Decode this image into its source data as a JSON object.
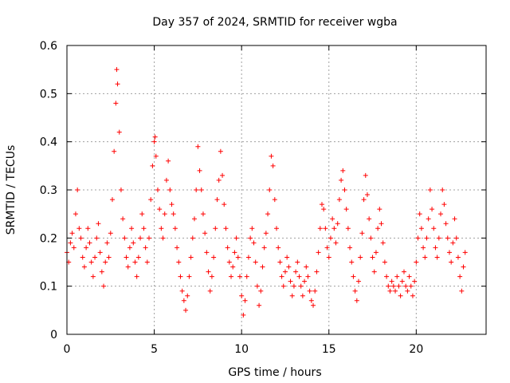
{
  "chart_data": {
    "type": "scatter",
    "title": "Day 357 of 2024, SRMTID for receiver wgba",
    "xlabel": "GPS time / hours",
    "ylabel": "SRMTID / TECUs",
    "xlim": [
      0,
      24
    ],
    "ylim": [
      0,
      0.6
    ],
    "x_ticks": [
      0,
      5,
      10,
      15,
      20
    ],
    "x_tick_labels": [
      "0",
      "5",
      "10",
      "15",
      "20"
    ],
    "y_ticks": [
      0,
      0.1,
      0.2,
      0.3,
      0.4,
      0.5,
      0.6
    ],
    "y_tick_labels": [
      "0",
      "0.1",
      "0.2",
      "0.3",
      "0.4",
      "0.5",
      "0.6"
    ],
    "grid": true,
    "marker": "+",
    "color": "#ff0000",
    "series": [
      {
        "name": "SRMTID",
        "points": [
          [
            0.0,
            0.17
          ],
          [
            0.1,
            0.15
          ],
          [
            0.2,
            0.19
          ],
          [
            0.3,
            0.21
          ],
          [
            0.4,
            0.18
          ],
          [
            0.5,
            0.25
          ],
          [
            0.6,
            0.3
          ],
          [
            0.7,
            0.22
          ],
          [
            0.8,
            0.2
          ],
          [
            0.9,
            0.16
          ],
          [
            1.0,
            0.14
          ],
          [
            1.1,
            0.18
          ],
          [
            1.2,
            0.22
          ],
          [
            1.3,
            0.19
          ],
          [
            1.4,
            0.15
          ],
          [
            1.5,
            0.12
          ],
          [
            1.6,
            0.16
          ],
          [
            1.7,
            0.2
          ],
          [
            1.8,
            0.23
          ],
          [
            1.9,
            0.17
          ],
          [
            2.0,
            0.13
          ],
          [
            2.1,
            0.1
          ],
          [
            2.2,
            0.15
          ],
          [
            2.3,
            0.19
          ],
          [
            2.4,
            0.16
          ],
          [
            2.5,
            0.21
          ],
          [
            2.6,
            0.28
          ],
          [
            2.7,
            0.38
          ],
          [
            2.8,
            0.48
          ],
          [
            2.85,
            0.55
          ],
          [
            2.9,
            0.52
          ],
          [
            3.0,
            0.42
          ],
          [
            3.1,
            0.3
          ],
          [
            3.2,
            0.24
          ],
          [
            3.3,
            0.2
          ],
          [
            3.4,
            0.16
          ],
          [
            3.5,
            0.14
          ],
          [
            3.6,
            0.18
          ],
          [
            3.7,
            0.22
          ],
          [
            3.8,
            0.19
          ],
          [
            3.9,
            0.15
          ],
          [
            4.0,
            0.12
          ],
          [
            4.1,
            0.16
          ],
          [
            4.2,
            0.2
          ],
          [
            4.3,
            0.25
          ],
          [
            4.4,
            0.22
          ],
          [
            4.5,
            0.18
          ],
          [
            4.6,
            0.15
          ],
          [
            4.7,
            0.2
          ],
          [
            4.8,
            0.28
          ],
          [
            4.9,
            0.35
          ],
          [
            5.0,
            0.4
          ],
          [
            5.05,
            0.41
          ],
          [
            5.1,
            0.37
          ],
          [
            5.2,
            0.3
          ],
          [
            5.3,
            0.26
          ],
          [
            5.4,
            0.22
          ],
          [
            5.5,
            0.2
          ],
          [
            5.6,
            0.25
          ],
          [
            5.7,
            0.32
          ],
          [
            5.8,
            0.36
          ],
          [
            5.9,
            0.3
          ],
          [
            6.0,
            0.27
          ],
          [
            6.1,
            0.25
          ],
          [
            6.2,
            0.22
          ],
          [
            6.3,
            0.18
          ],
          [
            6.4,
            0.15
          ],
          [
            6.5,
            0.12
          ],
          [
            6.6,
            0.09
          ],
          [
            6.7,
            0.07
          ],
          [
            6.8,
            0.05
          ],
          [
            6.9,
            0.08
          ],
          [
            7.0,
            0.12
          ],
          [
            7.1,
            0.16
          ],
          [
            7.2,
            0.2
          ],
          [
            7.3,
            0.24
          ],
          [
            7.4,
            0.3
          ],
          [
            7.5,
            0.39
          ],
          [
            7.6,
            0.34
          ],
          [
            7.7,
            0.3
          ],
          [
            7.8,
            0.25
          ],
          [
            7.9,
            0.21
          ],
          [
            8.0,
            0.17
          ],
          [
            8.1,
            0.13
          ],
          [
            8.2,
            0.09
          ],
          [
            8.3,
            0.12
          ],
          [
            8.4,
            0.16
          ],
          [
            8.5,
            0.22
          ],
          [
            8.6,
            0.28
          ],
          [
            8.7,
            0.32
          ],
          [
            8.8,
            0.38
          ],
          [
            8.9,
            0.33
          ],
          [
            9.0,
            0.27
          ],
          [
            9.1,
            0.22
          ],
          [
            9.2,
            0.18
          ],
          [
            9.3,
            0.15
          ],
          [
            9.4,
            0.12
          ],
          [
            9.5,
            0.14
          ],
          [
            9.6,
            0.17
          ],
          [
            9.7,
            0.2
          ],
          [
            9.8,
            0.16
          ],
          [
            9.9,
            0.12
          ],
          [
            10.0,
            0.08
          ],
          [
            10.1,
            0.04
          ],
          [
            10.2,
            0.07
          ],
          [
            10.3,
            0.12
          ],
          [
            10.4,
            0.16
          ],
          [
            10.5,
            0.2
          ],
          [
            10.6,
            0.22
          ],
          [
            10.7,
            0.19
          ],
          [
            10.8,
            0.15
          ],
          [
            10.9,
            0.1
          ],
          [
            11.0,
            0.06
          ],
          [
            11.1,
            0.09
          ],
          [
            11.2,
            0.14
          ],
          [
            11.3,
            0.18
          ],
          [
            11.4,
            0.21
          ],
          [
            11.5,
            0.25
          ],
          [
            11.6,
            0.3
          ],
          [
            11.7,
            0.37
          ],
          [
            11.8,
            0.35
          ],
          [
            11.9,
            0.28
          ],
          [
            12.0,
            0.22
          ],
          [
            12.1,
            0.18
          ],
          [
            12.2,
            0.15
          ],
          [
            12.3,
            0.12
          ],
          [
            12.4,
            0.1
          ],
          [
            12.5,
            0.13
          ],
          [
            12.6,
            0.16
          ],
          [
            12.7,
            0.14
          ],
          [
            12.8,
            0.11
          ],
          [
            12.9,
            0.08
          ],
          [
            13.0,
            0.1
          ],
          [
            13.1,
            0.13
          ],
          [
            13.2,
            0.15
          ],
          [
            13.3,
            0.12
          ],
          [
            13.4,
            0.1
          ],
          [
            13.5,
            0.08
          ],
          [
            13.6,
            0.11
          ],
          [
            13.7,
            0.14
          ],
          [
            13.8,
            0.12
          ],
          [
            13.9,
            0.09
          ],
          [
            14.0,
            0.07
          ],
          [
            14.1,
            0.06
          ],
          [
            14.2,
            0.09
          ],
          [
            14.3,
            0.13
          ],
          [
            14.4,
            0.17
          ],
          [
            14.5,
            0.22
          ],
          [
            14.6,
            0.27
          ],
          [
            14.7,
            0.26
          ],
          [
            14.8,
            0.22
          ],
          [
            14.9,
            0.18
          ],
          [
            15.0,
            0.16
          ],
          [
            15.1,
            0.2
          ],
          [
            15.2,
            0.24
          ],
          [
            15.3,
            0.22
          ],
          [
            15.4,
            0.19
          ],
          [
            15.5,
            0.23
          ],
          [
            15.6,
            0.28
          ],
          [
            15.7,
            0.32
          ],
          [
            15.8,
            0.34
          ],
          [
            15.9,
            0.3
          ],
          [
            16.0,
            0.26
          ],
          [
            16.1,
            0.22
          ],
          [
            16.2,
            0.18
          ],
          [
            16.3,
            0.15
          ],
          [
            16.4,
            0.12
          ],
          [
            16.5,
            0.09
          ],
          [
            16.6,
            0.07
          ],
          [
            16.7,
            0.11
          ],
          [
            16.8,
            0.16
          ],
          [
            16.9,
            0.21
          ],
          [
            17.0,
            0.28
          ],
          [
            17.1,
            0.33
          ],
          [
            17.2,
            0.29
          ],
          [
            17.3,
            0.24
          ],
          [
            17.4,
            0.2
          ],
          [
            17.5,
            0.16
          ],
          [
            17.6,
            0.13
          ],
          [
            17.7,
            0.17
          ],
          [
            17.8,
            0.22
          ],
          [
            17.9,
            0.26
          ],
          [
            18.0,
            0.23
          ],
          [
            18.1,
            0.19
          ],
          [
            18.2,
            0.15
          ],
          [
            18.3,
            0.12
          ],
          [
            18.4,
            0.1
          ],
          [
            18.5,
            0.09
          ],
          [
            18.6,
            0.11
          ],
          [
            18.7,
            0.1
          ],
          [
            18.8,
            0.09
          ],
          [
            18.9,
            0.12
          ],
          [
            19.0,
            0.1
          ],
          [
            19.1,
            0.08
          ],
          [
            19.2,
            0.11
          ],
          [
            19.3,
            0.13
          ],
          [
            19.4,
            0.1
          ],
          [
            19.5,
            0.09
          ],
          [
            19.6,
            0.12
          ],
          [
            19.7,
            0.1
          ],
          [
            19.8,
            0.08
          ],
          [
            19.9,
            0.11
          ],
          [
            20.0,
            0.15
          ],
          [
            20.1,
            0.2
          ],
          [
            20.2,
            0.25
          ],
          [
            20.3,
            0.22
          ],
          [
            20.4,
            0.18
          ],
          [
            20.5,
            0.16
          ],
          [
            20.6,
            0.2
          ],
          [
            20.7,
            0.24
          ],
          [
            20.8,
            0.3
          ],
          [
            20.9,
            0.26
          ],
          [
            21.0,
            0.22
          ],
          [
            21.1,
            0.18
          ],
          [
            21.2,
            0.16
          ],
          [
            21.3,
            0.2
          ],
          [
            21.4,
            0.25
          ],
          [
            21.5,
            0.3
          ],
          [
            21.6,
            0.27
          ],
          [
            21.7,
            0.23
          ],
          [
            21.8,
            0.2
          ],
          [
            21.9,
            0.17
          ],
          [
            22.0,
            0.15
          ],
          [
            22.1,
            0.19
          ],
          [
            22.2,
            0.24
          ],
          [
            22.3,
            0.2
          ],
          [
            22.4,
            0.16
          ],
          [
            22.5,
            0.12
          ],
          [
            22.6,
            0.09
          ],
          [
            22.7,
            0.14
          ],
          [
            22.8,
            0.17
          ]
        ]
      }
    ]
  }
}
